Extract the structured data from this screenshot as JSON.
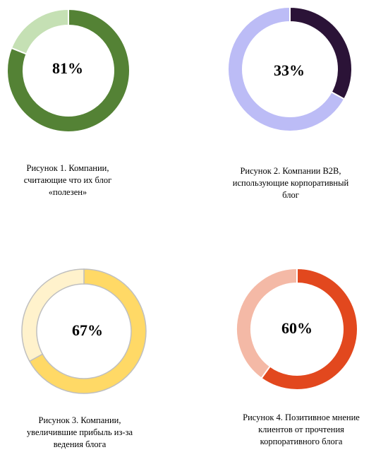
{
  "chart_data": [
    {
      "type": "pie",
      "variant": "donut",
      "values": [
        81,
        19
      ],
      "center_label": "81%",
      "colors": [
        "#548235",
        "#c5e0b4"
      ],
      "caption_lines": [
        "Рисунок 1. Компании,",
        "считающие что их блог",
        "«полезен»"
      ]
    },
    {
      "type": "pie",
      "variant": "donut",
      "values": [
        33,
        67
      ],
      "center_label": "33%",
      "colors": [
        "#2b1337",
        "#bcbcf6"
      ],
      "caption_lines": [
        "Рисунок 2. Компании B2B,",
        "использующие корпоративный",
        "блог"
      ]
    },
    {
      "type": "pie",
      "variant": "donut",
      "values": [
        67,
        33
      ],
      "center_label": "67%",
      "colors": [
        "#ffd966",
        "#fff2cc"
      ],
      "caption_lines": [
        "Рисунок 3. Компании,",
        "увеличившие прибыль из-за",
        "ведения блога"
      ]
    },
    {
      "type": "pie",
      "variant": "donut",
      "values": [
        60,
        40
      ],
      "center_label": "60%",
      "colors": [
        "#e2481e",
        "#f4b9a6"
      ],
      "caption_lines": [
        "Рисунок 4. Позитивное мнение",
        "клиентов от прочтения",
        "корпоративного блога"
      ]
    }
  ]
}
